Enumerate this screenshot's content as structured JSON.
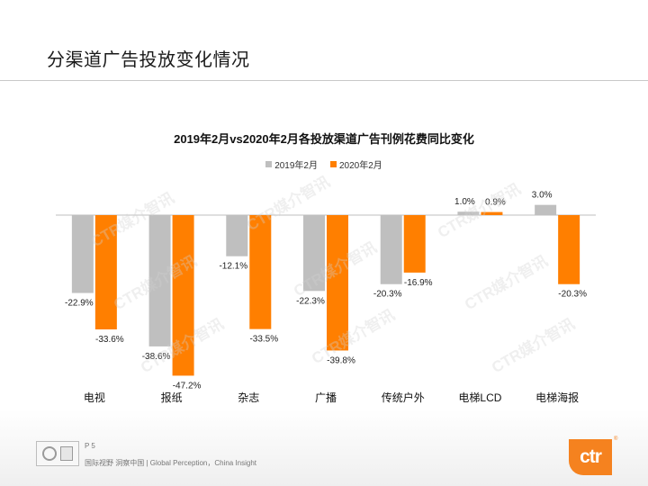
{
  "page": {
    "title": "分渠道广告投放变化情况",
    "page_number": "P 5",
    "tagline": "国际视野  洞察中国 | Global Perception，China Insight",
    "logo_text": "ctr",
    "logo_mark": "®",
    "watermark_text": "CTR媒介智讯",
    "accent_color": "#f5821f"
  },
  "chart_data": {
    "type": "bar",
    "title": "2019年2月vs2020年2月各投放渠道广告刊例花费同比变化",
    "categories": [
      "电视",
      "报纸",
      "杂志",
      "广播",
      "传统户外",
      "电梯LCD",
      "电梯海报"
    ],
    "series": [
      {
        "name": "2019年2月",
        "color": "#bfbfbf",
        "values": [
          -22.9,
          -38.6,
          -12.1,
          -22.3,
          -20.3,
          1.0,
          3.0
        ]
      },
      {
        "name": "2020年2月",
        "color": "#ff7f00",
        "values": [
          -33.6,
          -47.2,
          -33.5,
          -39.8,
          -16.9,
          0.9,
          -20.3
        ]
      }
    ],
    "data_labels": [
      [
        "-22.9%",
        "-38.6%",
        "-12.1%",
        "-22.3%",
        "-20.3%",
        "1.0%",
        "3.0%"
      ],
      [
        "-33.6%",
        "-47.2%",
        "-33.5%",
        "-39.8%",
        "-16.9%",
        "0.9%",
        "-20.3%"
      ]
    ],
    "ylim": [
      -50,
      5
    ],
    "legend_position": "top-center",
    "grid": false
  }
}
